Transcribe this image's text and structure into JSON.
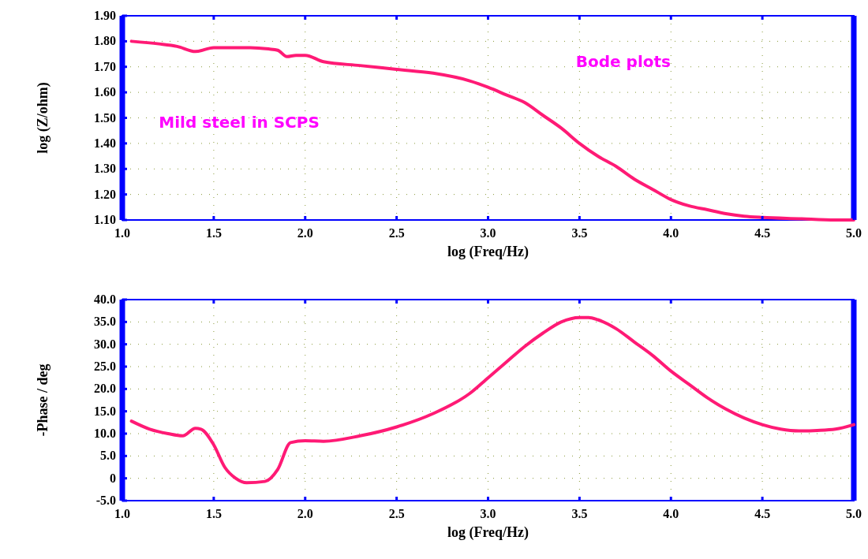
{
  "chart_data": [
    {
      "type": "line",
      "xlabel": "log (Freq/Hz)",
      "ylabel": "log (Z/ohm)",
      "annotations": [
        "Mild steel in SCPS",
        "Bode plots"
      ],
      "grid": true,
      "xlim": [
        1.0,
        5.0
      ],
      "ylim": [
        1.1,
        1.9
      ],
      "xticks": [
        {
          "value": 1,
          "label": "1.0"
        },
        {
          "value": 1.5,
          "label": "1.5"
        },
        {
          "value": 2,
          "label": "2.0"
        },
        {
          "value": 2.5,
          "label": "2.5"
        },
        {
          "value": 3,
          "label": "3.0"
        },
        {
          "value": 3.5,
          "label": "3.5"
        },
        {
          "value": 4,
          "label": "4.0"
        },
        {
          "value": 4.5,
          "label": "4.5"
        },
        {
          "value": 5,
          "label": "5.0"
        }
      ],
      "yticks": [
        {
          "value": 1.1,
          "label": "1.10"
        },
        {
          "value": 1.2,
          "label": "1.20"
        },
        {
          "value": 1.3,
          "label": "1.30"
        },
        {
          "value": 1.4,
          "label": "1.40"
        },
        {
          "value": 1.5,
          "label": "1.50"
        },
        {
          "value": 1.6,
          "label": "1.60"
        },
        {
          "value": 1.7,
          "label": "1.70"
        },
        {
          "value": 1.8,
          "label": "1.80"
        },
        {
          "value": 1.9,
          "label": "1.90"
        }
      ],
      "x": [
        1.05,
        1.2,
        1.3,
        1.4,
        1.5,
        1.7,
        1.8,
        1.85,
        1.9,
        1.95,
        2.0,
        2.1,
        2.3,
        2.5,
        2.7,
        2.9,
        3.0,
        3.1,
        3.2,
        3.3,
        3.4,
        3.5,
        3.6,
        3.7,
        3.8,
        3.9,
        4.0,
        4.1,
        4.2,
        4.3,
        4.4,
        4.5,
        4.7,
        4.9,
        5.0
      ],
      "series": [
        {
          "color": "#ff1a75",
          "values": [
            1.8,
            1.79,
            1.78,
            1.76,
            1.775,
            1.775,
            1.77,
            1.765,
            1.74,
            1.745,
            1.745,
            1.72,
            1.705,
            1.69,
            1.675,
            1.645,
            1.62,
            1.59,
            1.56,
            1.51,
            1.46,
            1.4,
            1.35,
            1.31,
            1.26,
            1.22,
            1.18,
            1.155,
            1.14,
            1.125,
            1.115,
            1.11,
            1.105,
            1.1,
            1.1
          ]
        }
      ]
    },
    {
      "type": "line",
      "xlabel": "log (Freq/Hz)",
      "ylabel": "-Phase / deg",
      "grid": true,
      "xlim": [
        1.0,
        5.0
      ],
      "ylim": [
        -5,
        40
      ],
      "xticks": [
        {
          "value": 1,
          "label": "1.0"
        },
        {
          "value": 1.5,
          "label": "1.5"
        },
        {
          "value": 2,
          "label": "2.0"
        },
        {
          "value": 2.5,
          "label": "2.5"
        },
        {
          "value": 3,
          "label": "3.0"
        },
        {
          "value": 3.5,
          "label": "3.5"
        },
        {
          "value": 4,
          "label": "4.0"
        },
        {
          "value": 4.5,
          "label": "4.5"
        },
        {
          "value": 5,
          "label": "5.0"
        }
      ],
      "yticks": [
        {
          "value": -5,
          "label": "-5.0"
        },
        0,
        {
          "value": 5,
          "label": "5.0"
        },
        {
          "value": 10,
          "label": "10.0"
        },
        {
          "value": 15,
          "label": "15.0"
        },
        {
          "value": 20,
          "label": "20.0"
        },
        {
          "value": 25,
          "label": "25.0"
        },
        {
          "value": 30,
          "label": "30.0"
        },
        {
          "value": 35,
          "label": "35.0"
        },
        {
          "value": 40,
          "label": "40.0"
        }
      ],
      "x": [
        1.05,
        1.15,
        1.25,
        1.33,
        1.4,
        1.43,
        1.5,
        1.56,
        1.62,
        1.68,
        1.78,
        1.85,
        1.92,
        2.0,
        2.1,
        2.3,
        2.5,
        2.7,
        2.9,
        3.0,
        3.1,
        3.2,
        3.3,
        3.4,
        3.5,
        3.55,
        3.6,
        3.7,
        3.8,
        3.9,
        4.0,
        4.1,
        4.2,
        4.3,
        4.4,
        4.5,
        4.6,
        4.7,
        4.8,
        4.9,
        5.0
      ],
      "series": [
        {
          "color": "#ff1a75",
          "values": [
            12.8,
            11,
            10,
            9.5,
            11.2,
            11,
            7.5,
            2.5,
            0,
            -1,
            -0.7,
            2,
            8,
            8.4,
            8.3,
            9.5,
            11.5,
            14.5,
            19,
            22.5,
            26,
            29.5,
            32.5,
            35,
            36,
            36,
            35.5,
            33.5,
            30.5,
            27.5,
            24,
            21,
            18,
            15.5,
            13.5,
            12,
            11,
            10.6,
            10.7,
            11,
            12
          ]
        }
      ]
    }
  ]
}
